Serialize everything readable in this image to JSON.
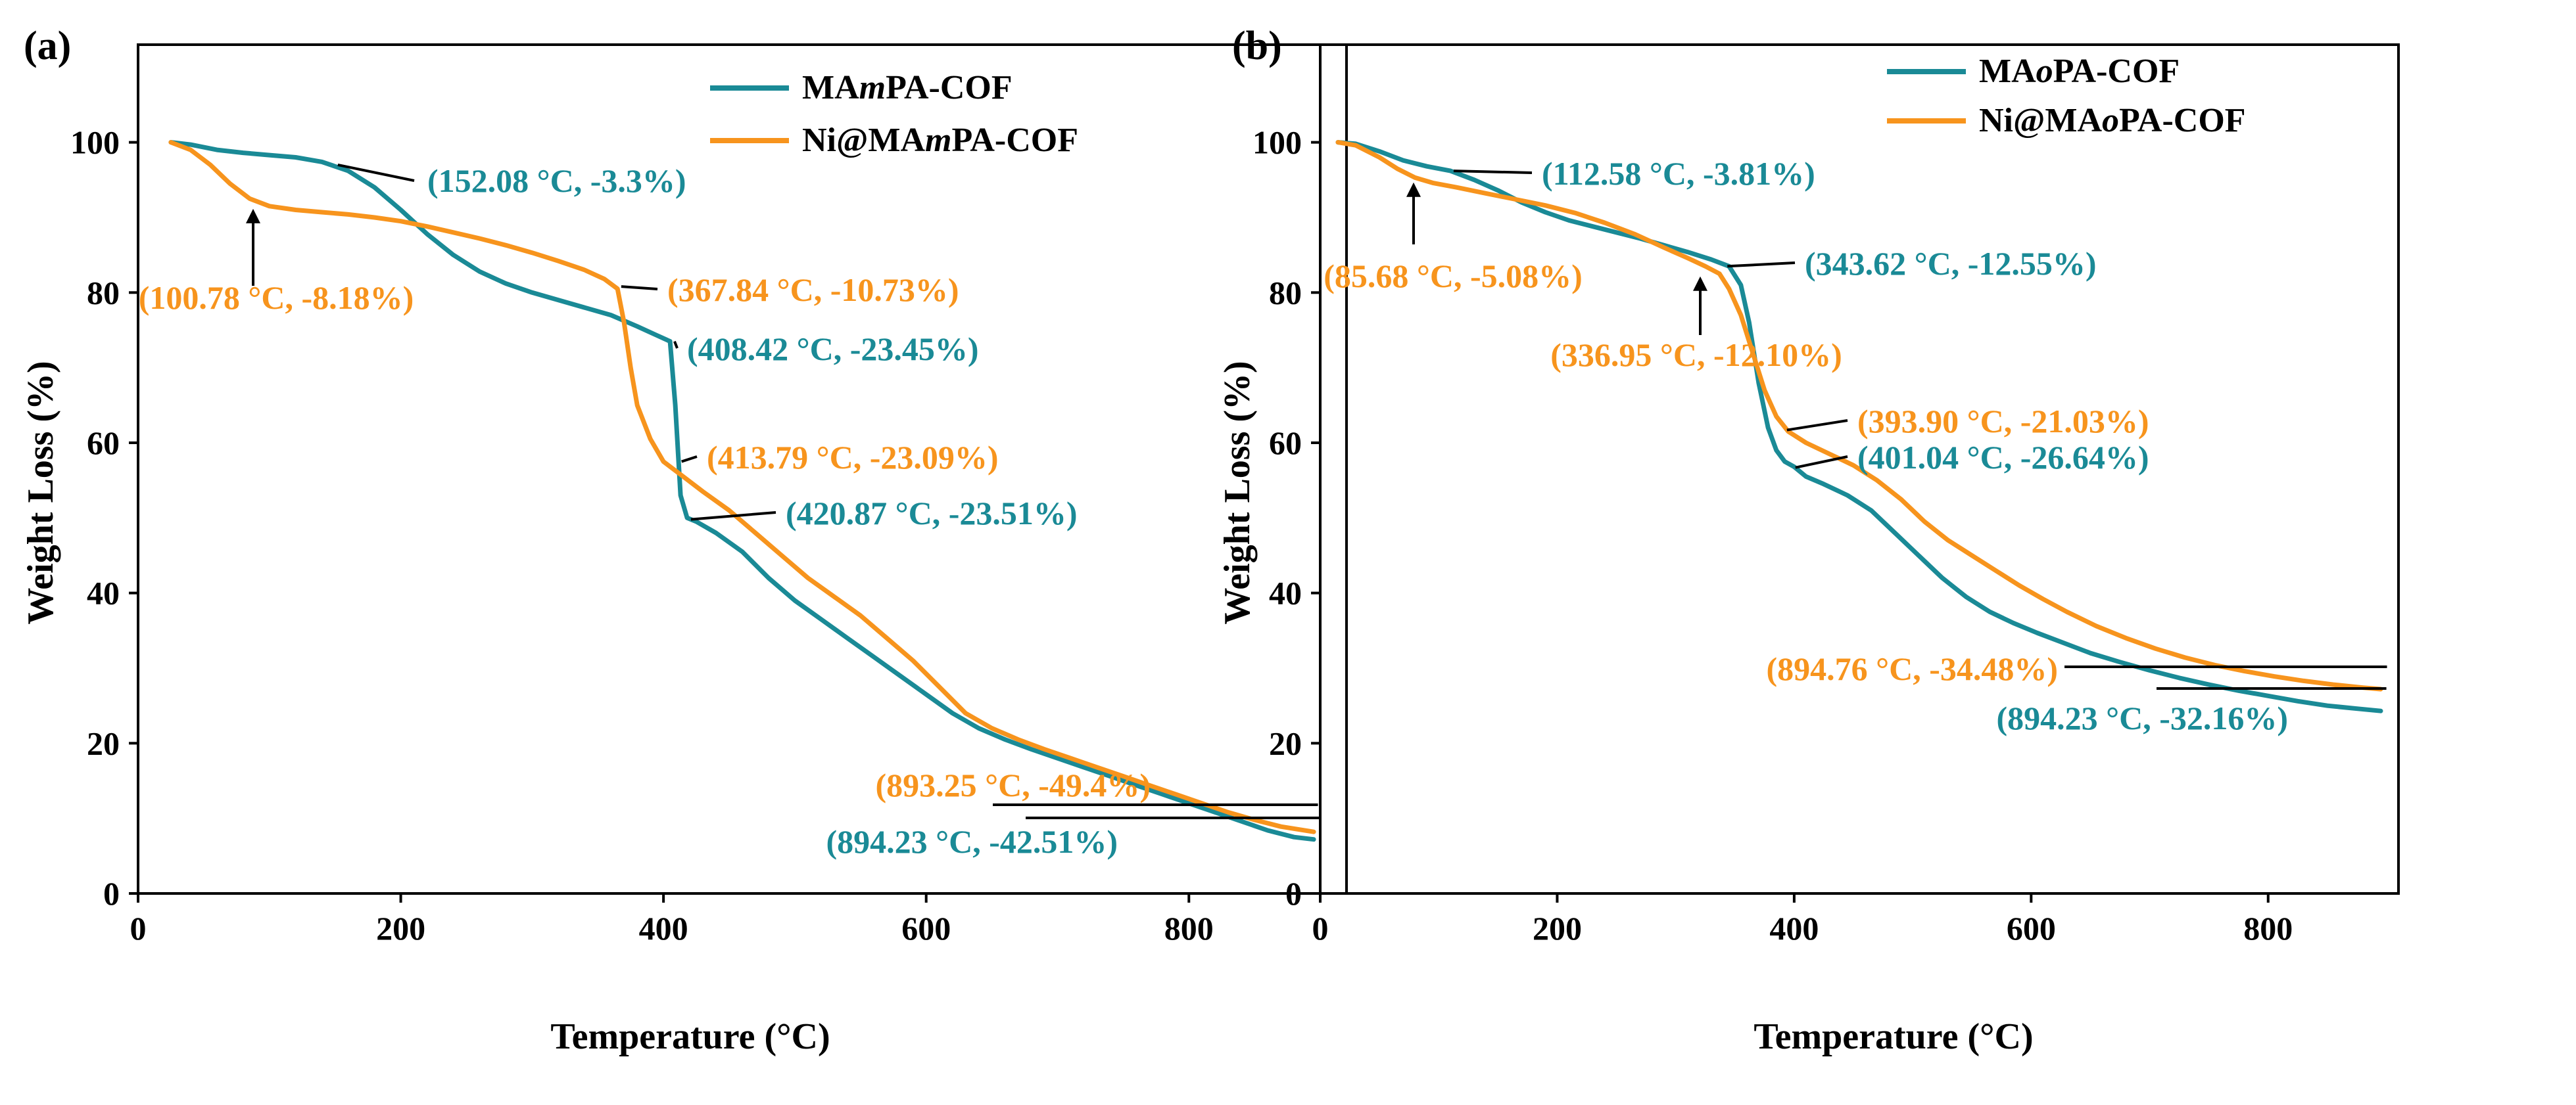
{
  "chart_data": [
    {
      "panel_label": "(a)",
      "type": "line",
      "xlabel": "Temperature (°C)",
      "ylabel": "Weight Loss (%)",
      "xlim": [
        0,
        920
      ],
      "ylim": [
        0,
        113
      ],
      "xticks": [
        0,
        200,
        400,
        600,
        800
      ],
      "yticks": [
        0,
        20,
        40,
        60,
        80,
        100
      ],
      "legend_position": "top-right",
      "series": [
        {
          "name": "MAmPA-COF",
          "name_prefix": "MA",
          "name_italic": "m",
          "name_suffix": "PA-COF",
          "color": "#1a8a96",
          "x": [
            25,
            40,
            60,
            80,
            100,
            120,
            140,
            160,
            180,
            200,
            220,
            240,
            260,
            280,
            300,
            320,
            340,
            360,
            380,
            395,
            405,
            409,
            413,
            418,
            425,
            440,
            460,
            480,
            500,
            520,
            540,
            560,
            580,
            600,
            620,
            640,
            660,
            680,
            700,
            720,
            740,
            760,
            780,
            800,
            820,
            840,
            860,
            880,
            895
          ],
          "y": [
            100,
            99.7,
            99,
            98.6,
            98.3,
            98.0,
            97.4,
            96.2,
            94.0,
            91.0,
            87.8,
            85.0,
            82.8,
            81.2,
            80.0,
            79.0,
            78.0,
            77.0,
            75.5,
            74.3,
            73.5,
            65.0,
            53.0,
            50.0,
            49.5,
            48.0,
            45.5,
            42.0,
            39.0,
            36.5,
            34.0,
            31.5,
            29.0,
            26.5,
            24.0,
            22.0,
            20.5,
            19.2,
            18.0,
            16.8,
            15.6,
            14.4,
            13.2,
            12.0,
            10.8,
            9.6,
            8.4,
            7.5,
            7.2
          ]
        },
        {
          "name": "Ni@MAmPA-COF",
          "name_prefix": "Ni@MA",
          "name_italic": "m",
          "name_suffix": "PA-COF",
          "color": "#f7941d",
          "x": [
            25,
            40,
            55,
            70,
            85,
            100,
            120,
            140,
            160,
            180,
            200,
            220,
            240,
            260,
            280,
            300,
            320,
            340,
            355,
            365,
            370,
            375,
            380,
            390,
            400,
            415,
            430,
            450,
            470,
            490,
            510,
            530,
            550,
            570,
            590,
            610,
            630,
            650,
            670,
            690,
            710,
            730,
            750,
            770,
            790,
            810,
            830,
            850,
            870,
            895
          ],
          "y": [
            100,
            99.0,
            97.0,
            94.5,
            92.5,
            91.5,
            91.0,
            90.7,
            90.4,
            90.0,
            89.5,
            88.8,
            88.0,
            87.2,
            86.3,
            85.3,
            84.2,
            83.0,
            81.8,
            80.5,
            76.0,
            70.0,
            65.0,
            60.5,
            57.5,
            55.5,
            53.5,
            51.0,
            48.0,
            45.0,
            42.0,
            39.5,
            37.0,
            34.0,
            31.0,
            27.5,
            24.0,
            22.0,
            20.5,
            19.2,
            18.0,
            16.8,
            15.6,
            14.4,
            13.2,
            12.0,
            10.8,
            9.8,
            8.9,
            8.2
          ]
        }
      ],
      "annotations": [
        {
          "text": "(152.08 °C, -3.3%)",
          "series": 0,
          "point": [
            152.08,
            97.0
          ]
        },
        {
          "text": "(100.78 °C, -8.18%)",
          "series": 1,
          "point": [
            100.78,
            91.5
          ],
          "arrow": true
        },
        {
          "text": "(367.84 °C, -10.73%)",
          "series": 1,
          "point": [
            367.84,
            80.8
          ]
        },
        {
          "text": "(408.42 °C, -23.45%)",
          "series": 0,
          "point": [
            408.42,
            73.5
          ]
        },
        {
          "text": "(413.79 °C, -23.09%)",
          "series": 1,
          "point": [
            413.79,
            57.5
          ]
        },
        {
          "text": "(420.87 °C, -23.51%)",
          "series": 0,
          "point": [
            420.87,
            49.8
          ]
        },
        {
          "text": "(893.25 °C, -49.4%)",
          "series": 1,
          "point": [
            893.25,
            8.3
          ]
        },
        {
          "text": "(894.23 °C, -42.51%)",
          "series": 0,
          "point": [
            894.23,
            7.2
          ]
        }
      ]
    },
    {
      "panel_label": "(b)",
      "type": "line",
      "xlabel": "Temperature (°C)",
      "ylabel": "Weight Loss (%)",
      "xlim": [
        0,
        910
      ],
      "ylim": [
        0,
        113
      ],
      "xticks": [
        0,
        200,
        400,
        600,
        800
      ],
      "yticks": [
        0,
        20,
        40,
        60,
        80,
        100
      ],
      "legend_position": "top-right",
      "series": [
        {
          "name": "MAoPA-COF",
          "name_prefix": "MA",
          "name_italic": "o",
          "name_suffix": "PA-COF",
          "color": "#1a8a96",
          "x": [
            15,
            30,
            50,
            70,
            90,
            110,
            130,
            150,
            170,
            190,
            210,
            230,
            250,
            270,
            290,
            310,
            330,
            345,
            355,
            362,
            370,
            378,
            385,
            392,
            400,
            410,
            425,
            445,
            465,
            485,
            505,
            525,
            545,
            565,
            585,
            605,
            625,
            650,
            675,
            700,
            725,
            750,
            775,
            800,
            825,
            850,
            875,
            895
          ],
          "y": [
            100,
            99.8,
            98.8,
            97.6,
            96.8,
            96.2,
            95.0,
            93.6,
            92.0,
            90.7,
            89.6,
            88.8,
            88.0,
            87.2,
            86.3,
            85.4,
            84.4,
            83.5,
            81.0,
            76.0,
            68.0,
            62.0,
            59.0,
            57.5,
            56.8,
            55.5,
            54.5,
            53.0,
            51.0,
            48.0,
            45.0,
            42.0,
            39.5,
            37.5,
            36.0,
            34.7,
            33.5,
            32.0,
            30.8,
            29.7,
            28.7,
            27.8,
            27.0,
            26.3,
            25.6,
            25.0,
            24.6,
            24.3
          ]
        },
        {
          "name": "Ni@MAoPA-COF",
          "name_prefix": "Ni@MA",
          "name_italic": "o",
          "name_suffix": "PA-COF",
          "color": "#f7941d",
          "x": [
            15,
            30,
            50,
            65,
            80,
            95,
            115,
            140,
            165,
            190,
            215,
            240,
            265,
            290,
            310,
            325,
            337,
            345,
            355,
            365,
            375,
            385,
            395,
            410,
            430,
            450,
            470,
            490,
            510,
            530,
            550,
            570,
            590,
            610,
            630,
            655,
            680,
            705,
            730,
            755,
            780,
            805,
            830,
            855,
            880,
            895
          ],
          "y": [
            100,
            99.6,
            98.0,
            96.5,
            95.3,
            94.6,
            94.0,
            93.2,
            92.4,
            91.6,
            90.6,
            89.3,
            87.8,
            86.0,
            84.6,
            83.5,
            82.5,
            80.5,
            77.0,
            72.0,
            67.0,
            63.5,
            61.5,
            60.0,
            58.5,
            57.0,
            55.0,
            52.5,
            49.5,
            47.0,
            45.0,
            43.0,
            41.0,
            39.2,
            37.5,
            35.6,
            34.0,
            32.6,
            31.4,
            30.4,
            29.6,
            28.9,
            28.3,
            27.8,
            27.4,
            27.2
          ]
        }
      ],
      "annotations": [
        {
          "text": "(112.58 °C, -3.81%)",
          "series": 0,
          "point": [
            112.58,
            96.2
          ]
        },
        {
          "text": "(85.68 °C, -5.08%)",
          "series": 1,
          "point": [
            85.68,
            95.0
          ],
          "arrow": true
        },
        {
          "text": "(343.62 °C, -12.55%)",
          "series": 0,
          "point": [
            343.62,
            83.5
          ]
        },
        {
          "text": "(336.95 °C, -12.10%)",
          "series": 1,
          "point": [
            336.95,
            82.5
          ],
          "arrow": true
        },
        {
          "text": "(393.90 °C, -21.03%)",
          "series": 1,
          "point": [
            393.9,
            61.7
          ]
        },
        {
          "text": "(401.04 °C, -26.64%)",
          "series": 0,
          "point": [
            401.04,
            56.7
          ]
        },
        {
          "text": "(894.76 °C, -34.48%)",
          "series": 1,
          "point": [
            894.76,
            27.2
          ]
        },
        {
          "text": "(894.23 °C, -32.16%)",
          "series": 0,
          "point": [
            894.23,
            24.5
          ]
        }
      ]
    }
  ]
}
